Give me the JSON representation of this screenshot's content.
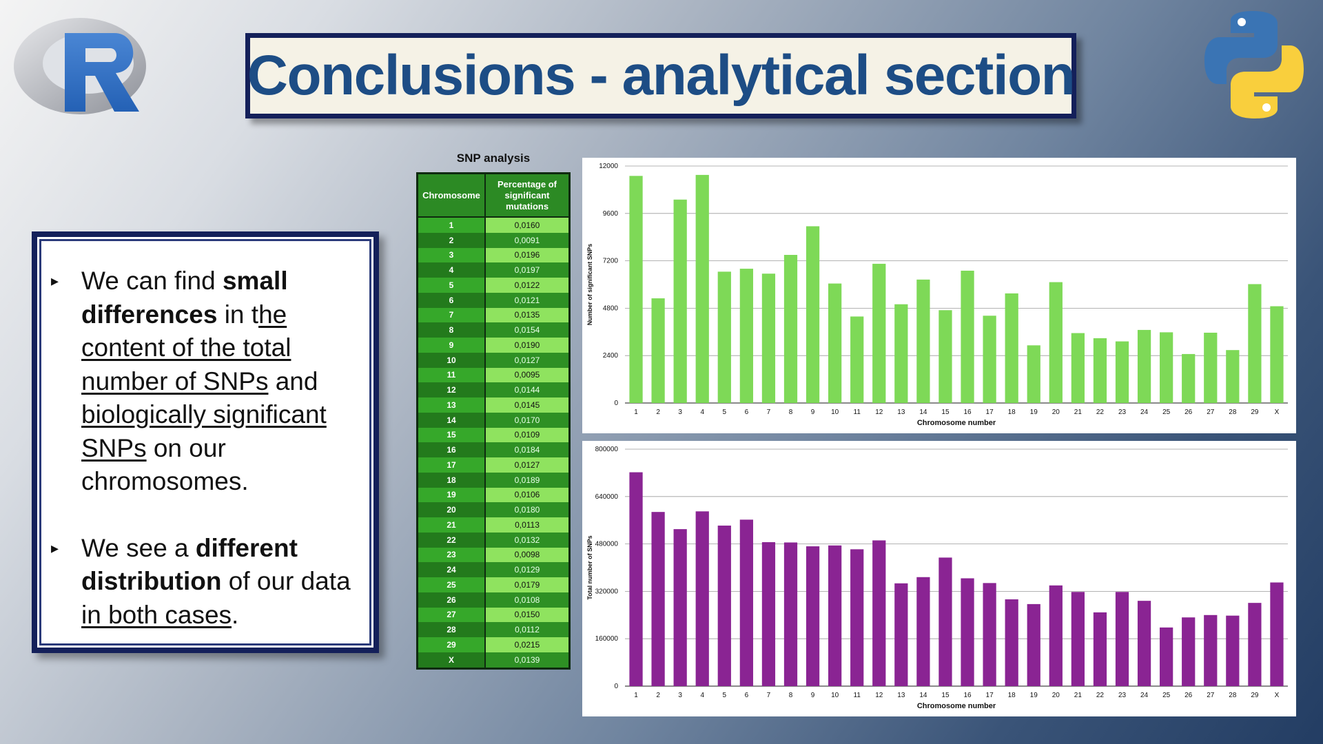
{
  "title": "Conclusions - analytical section",
  "logos": {
    "left": "R",
    "right": "python-logo"
  },
  "bullets": [
    {
      "parts": [
        {
          "t": "We can find ",
          "s": "normal"
        },
        {
          "t": "small differences",
          "s": "bold"
        },
        {
          "t": " in t",
          "s": "normal"
        },
        {
          "t": "he content of the total number of SNPs",
          "s": "ul"
        },
        {
          "t": " and ",
          "s": "normal"
        },
        {
          "t": "biologically significant SNPs",
          "s": "ul"
        },
        {
          "t": " on our chromosomes.",
          "s": "normal"
        }
      ]
    },
    {
      "parts": [
        {
          "t": "We see a ",
          "s": "normal"
        },
        {
          "t": "different distribution",
          "s": "bold"
        },
        {
          "t": " of our data ",
          "s": "normal"
        },
        {
          "t": "in both cases",
          "s": "ul"
        },
        {
          "t": ".",
          "s": "normal"
        }
      ]
    }
  ],
  "table": {
    "title": "SNP analysis",
    "headers": [
      "Chromosome",
      "Percentage of significant mutations"
    ],
    "rows": [
      [
        "1",
        "0,0160"
      ],
      [
        "2",
        "0,0091"
      ],
      [
        "3",
        "0,0196"
      ],
      [
        "4",
        "0,0197"
      ],
      [
        "5",
        "0,0122"
      ],
      [
        "6",
        "0,0121"
      ],
      [
        "7",
        "0,0135"
      ],
      [
        "8",
        "0,0154"
      ],
      [
        "9",
        "0,0190"
      ],
      [
        "10",
        "0,0127"
      ],
      [
        "11",
        "0,0095"
      ],
      [
        "12",
        "0,0144"
      ],
      [
        "13",
        "0,0145"
      ],
      [
        "14",
        "0,0170"
      ],
      [
        "15",
        "0,0109"
      ],
      [
        "16",
        "0,0184"
      ],
      [
        "17",
        "0,0127"
      ],
      [
        "18",
        "0,0189"
      ],
      [
        "19",
        "0,0106"
      ],
      [
        "20",
        "0,0180"
      ],
      [
        "21",
        "0,0113"
      ],
      [
        "22",
        "0,0132"
      ],
      [
        "23",
        "0,0098"
      ],
      [
        "24",
        "0,0129"
      ],
      [
        "25",
        "0,0179"
      ],
      [
        "26",
        "0,0108"
      ],
      [
        "27",
        "0,0150"
      ],
      [
        "28",
        "0,0112"
      ],
      [
        "29",
        "0,0215"
      ],
      [
        "X",
        "0,0139"
      ]
    ]
  },
  "chart_data": [
    {
      "type": "bar",
      "xlabel": "Chromosome number",
      "ylabel": "Number of significant SNPs",
      "ylim": [
        0,
        12000
      ],
      "yticks": [
        0,
        2400,
        4800,
        7200,
        9600,
        12000
      ],
      "grid": true,
      "color": "#7ed957",
      "categories": [
        "1",
        "2",
        "3",
        "4",
        "5",
        "6",
        "7",
        "8",
        "9",
        "10",
        "11",
        "12",
        "13",
        "14",
        "15",
        "16",
        "17",
        "18",
        "19",
        "20",
        "21",
        "22",
        "23",
        "24",
        "25",
        "26",
        "27",
        "28",
        "29",
        "X"
      ],
      "values": [
        11500,
        5300,
        10300,
        11550,
        6650,
        6800,
        6550,
        7500,
        8950,
        6050,
        4380,
        7050,
        5000,
        6250,
        4700,
        6700,
        4420,
        5550,
        2920,
        6120,
        3540,
        3280,
        3120,
        3700,
        3580,
        2480,
        3560,
        2680,
        6020,
        4900
      ]
    },
    {
      "type": "bar",
      "xlabel": "Chromosome number",
      "ylabel": "Total number of SNPs",
      "ylim": [
        0,
        800000
      ],
      "yticks": [
        0,
        160000,
        320000,
        480000,
        640000,
        800000
      ],
      "grid": true,
      "color": "#8a2493",
      "categories": [
        "1",
        "2",
        "3",
        "4",
        "5",
        "6",
        "7",
        "8",
        "9",
        "10",
        "11",
        "12",
        "13",
        "14",
        "15",
        "16",
        "17",
        "18",
        "19",
        "20",
        "21",
        "22",
        "23",
        "24",
        "25",
        "26",
        "27",
        "28",
        "29",
        "X"
      ],
      "values": [
        722000,
        588000,
        530000,
        590000,
        542000,
        562000,
        486000,
        485000,
        472000,
        475000,
        462000,
        492000,
        347000,
        368000,
        434000,
        364000,
        348000,
        293000,
        277000,
        340000,
        318000,
        249000,
        318000,
        288000,
        198000,
        232000,
        240000,
        238000,
        281000,
        350000
      ]
    }
  ]
}
